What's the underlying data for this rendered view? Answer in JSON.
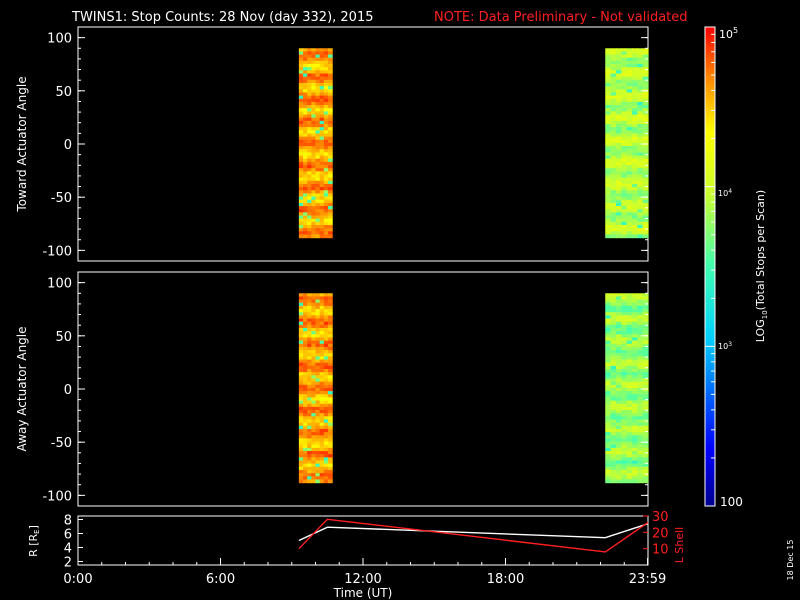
{
  "header": {
    "title": "TWINS1: Stop Counts: 28 Nov (day 332), 2015",
    "note": "NOTE: Data Preliminary - Not validated",
    "note_color": "#ff2020"
  },
  "side_label": "18 Dec 15",
  "chart_data": [
    {
      "type": "heatmap",
      "panel": "toward",
      "ylabel": "Toward Actuator Angle",
      "ylim": [
        -110,
        110
      ],
      "yticks": [
        100,
        50,
        0,
        -50,
        -100
      ],
      "xlim_hours": [
        0,
        24
      ],
      "blocks": [
        {
          "x_start_hours": 9.3,
          "x_end_hours": 10.7,
          "y_range": [
            -88,
            90
          ],
          "dominant_log10": 4.6
        },
        {
          "x_start_hours": 22.2,
          "x_end_hours": 24.0,
          "y_range": [
            -88,
            90
          ],
          "dominant_log10": 3.9
        }
      ]
    },
    {
      "type": "heatmap",
      "panel": "away",
      "ylabel": "Away Actuator Angle",
      "ylim": [
        -110,
        110
      ],
      "yticks": [
        100,
        50,
        0,
        -50,
        -100
      ],
      "xlim_hours": [
        0,
        24
      ],
      "blocks": [
        {
          "x_start_hours": 9.3,
          "x_end_hours": 10.7,
          "y_range": [
            -88,
            90
          ],
          "dominant_log10": 4.6
        },
        {
          "x_start_hours": 22.2,
          "x_end_hours": 24.0,
          "y_range": [
            -88,
            90
          ],
          "dominant_log10": 3.8
        }
      ]
    },
    {
      "type": "line",
      "panel": "orbit",
      "ylabel_left": "R [R",
      "ylabel_left_sub": "E",
      "ylabel_left_end": "]",
      "ylabel_right": "L Shell",
      "ylim_left": [
        1.5,
        8.5
      ],
      "yticks_left": [
        2,
        4,
        6,
        8
      ],
      "ylim_right": [
        0,
        30
      ],
      "yticks_right": [
        10,
        20,
        30
      ],
      "xlabel": "Time (UT)",
      "xticks": [
        {
          "hours": 0,
          "label": "0:00"
        },
        {
          "hours": 6,
          "label": "6:00"
        },
        {
          "hours": 12,
          "label": "12:00"
        },
        {
          "hours": 18,
          "label": "18:00"
        },
        {
          "hours": 23.98,
          "label": "23:59"
        }
      ],
      "series": [
        {
          "axis": "left",
          "color": "#ffffff",
          "x_hours": [
            9.3,
            10.5,
            22.2,
            24.0
          ],
          "y": [
            5.0,
            6.9,
            5.4,
            7.4
          ]
        },
        {
          "axis": "right",
          "color": "#ff2020",
          "x_hours": [
            9.3,
            10.5,
            22.2,
            24.0
          ],
          "y": [
            10,
            28,
            8,
            26
          ]
        }
      ]
    }
  ],
  "colorbar": {
    "scale": "log",
    "range": [
      100,
      100000
    ],
    "top_label_base": "10",
    "top_label_exp": "5",
    "mid_label_base": "10",
    "mid_label_exp": "4",
    "low_label_base": "10",
    "low_label_exp": "3",
    "bottom_label": "100",
    "title_pre": "LOG",
    "title_sub": "10",
    "title_post": "(Total Stops per Scan)"
  }
}
